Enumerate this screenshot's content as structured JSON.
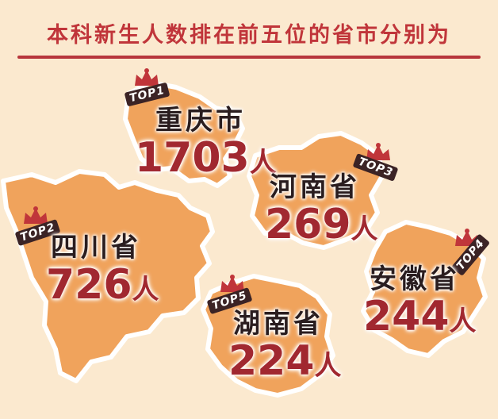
{
  "title": "本科新生人数排在前五位的省市分别为",
  "colors": {
    "background": "#fbe9cf",
    "map_fill": "#f0a35c",
    "map_outline": "#ffffff",
    "accent": "#c0353a",
    "count_color": "#a12830"
  },
  "rankings": [
    {
      "rank_badge": "TOP1",
      "province": "重庆市",
      "count": "1703",
      "unit": "人"
    },
    {
      "rank_badge": "TOP2",
      "province": "四川省",
      "count": "726",
      "unit": "人"
    },
    {
      "rank_badge": "TOP3",
      "province": "河南省",
      "count": "269",
      "unit": "人"
    },
    {
      "rank_badge": "TOP4",
      "province": "安徽省",
      "count": "244",
      "unit": "人"
    },
    {
      "rank_badge": "TOP5",
      "province": "湖南省",
      "count": "224",
      "unit": "人"
    }
  ]
}
